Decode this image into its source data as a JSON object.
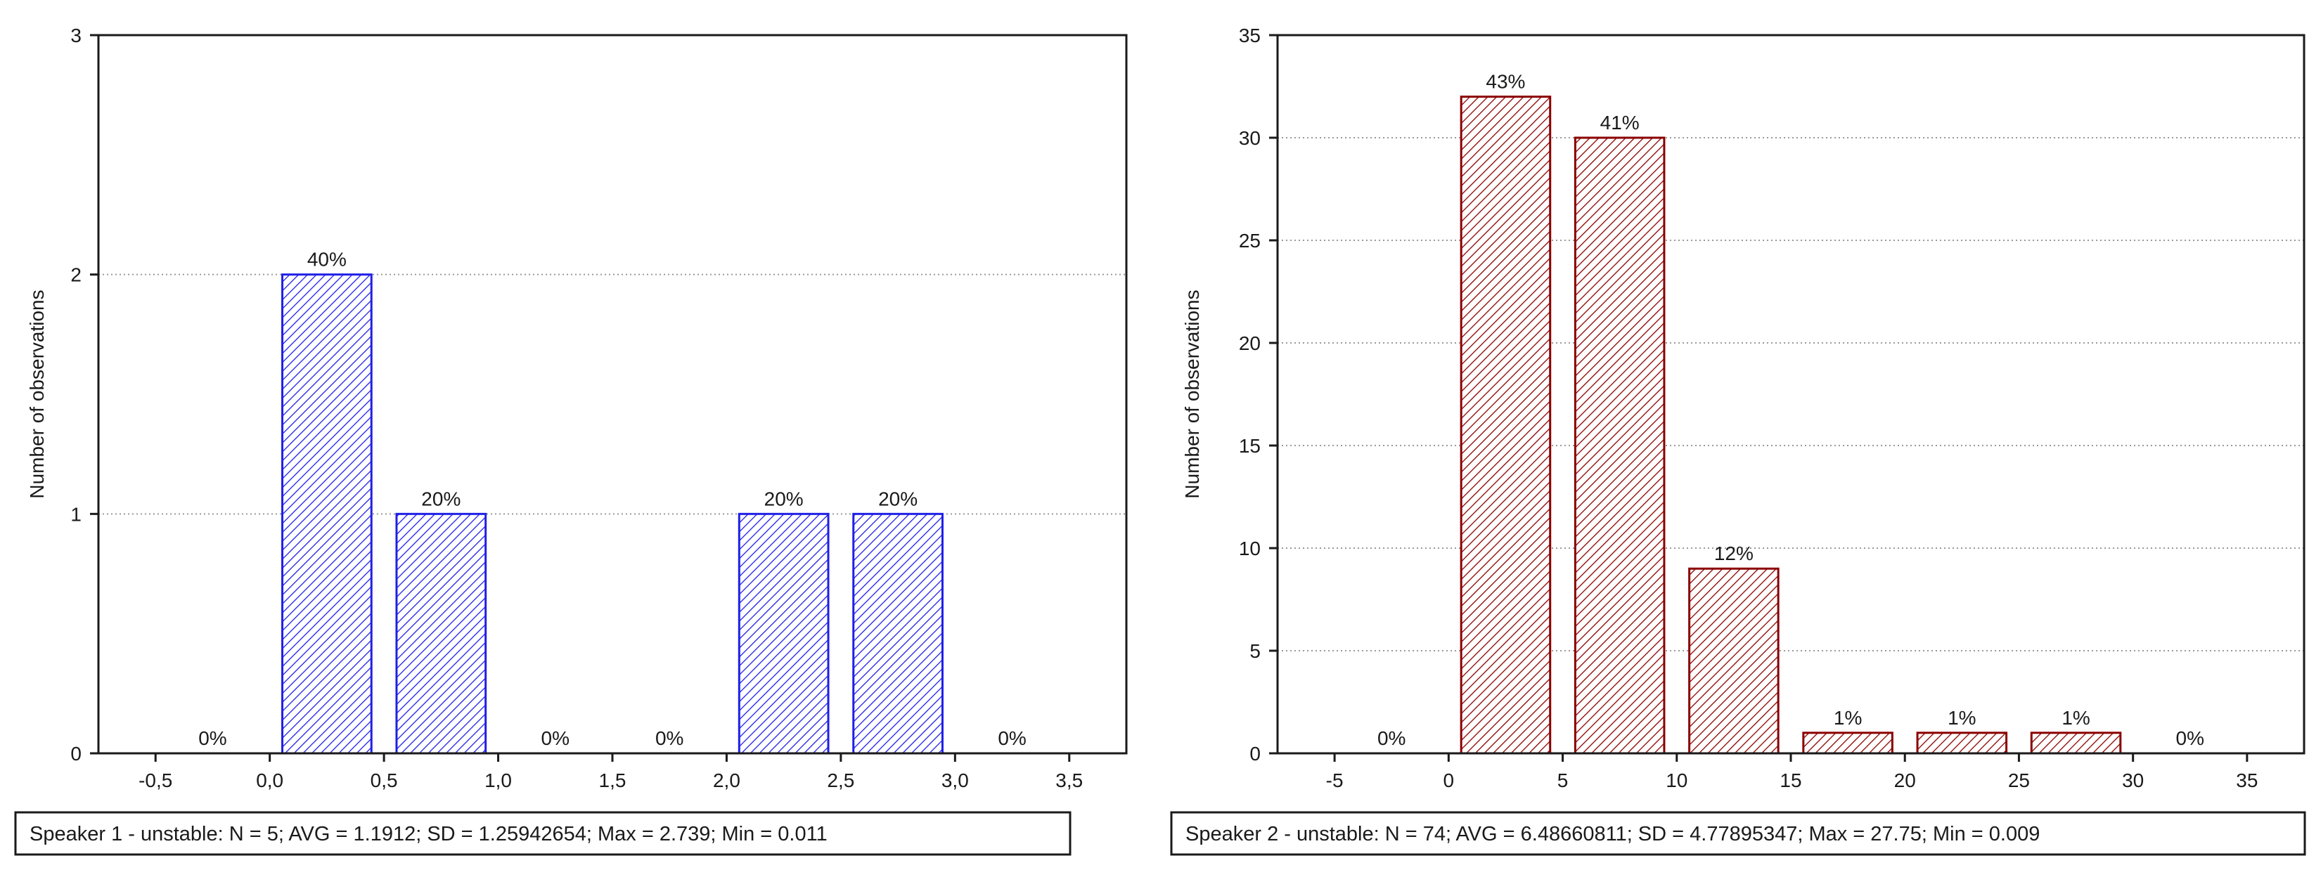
{
  "chart_data": [
    {
      "type": "bar",
      "xlabel": "",
      "ylabel": "Number of observations",
      "xlim": [
        -0.75,
        3.75
      ],
      "ylim": [
        0,
        3
      ],
      "xticks": [
        "-0,5",
        "0,0",
        "0,5",
        "1,0",
        "1,5",
        "2,0",
        "2,5",
        "3,0",
        "3,5"
      ],
      "xtick_values": [
        -0.5,
        0.0,
        0.5,
        1.0,
        1.5,
        2.0,
        2.5,
        3.0,
        3.5
      ],
      "yticks": [
        "0",
        "1",
        "2",
        "3"
      ],
      "ytick_values": [
        0,
        1,
        2,
        3
      ],
      "bins": [
        [
          -0.5,
          0.0
        ],
        [
          0.0,
          0.5
        ],
        [
          0.5,
          1.0
        ],
        [
          1.0,
          1.5
        ],
        [
          1.5,
          2.0
        ],
        [
          2.0,
          2.5
        ],
        [
          2.5,
          3.0
        ],
        [
          3.0,
          3.5
        ]
      ],
      "values": [
        0,
        2,
        1,
        0,
        0,
        1,
        1,
        0
      ],
      "data_labels": [
        "0%",
        "40%",
        "20%",
        "0%",
        "0%",
        "20%",
        "20%",
        "0%"
      ],
      "grid": "horizontal dotted",
      "colors": {
        "bar": "#1f1fe8",
        "hatch": "#1f1fe8"
      },
      "caption": "Speaker 1 - unstable:   N = 5; AVG = 1.1912; SD = 1.25942654; Max = 2.739; Min = 0.011"
    },
    {
      "type": "bar",
      "xlabel": "",
      "ylabel": "Number of observations",
      "xlim": [
        -7.5,
        37.5
      ],
      "ylim": [
        0,
        35
      ],
      "xticks": [
        "-5",
        "0",
        "5",
        "10",
        "15",
        "20",
        "25",
        "30",
        "35"
      ],
      "xtick_values": [
        -5,
        0,
        5,
        10,
        15,
        20,
        25,
        30,
        35
      ],
      "yticks": [
        "0",
        "5",
        "10",
        "15",
        "20",
        "25",
        "30",
        "35"
      ],
      "ytick_values": [
        0,
        5,
        10,
        15,
        20,
        25,
        30,
        35
      ],
      "bins": [
        [
          -5,
          0
        ],
        [
          0,
          5
        ],
        [
          5,
          10
        ],
        [
          10,
          15
        ],
        [
          15,
          20
        ],
        [
          20,
          25
        ],
        [
          25,
          30
        ],
        [
          30,
          35
        ]
      ],
      "values": [
        0,
        32,
        30,
        9,
        1,
        1,
        1,
        0
      ],
      "data_labels": [
        "0%",
        "43%",
        "41%",
        "12%",
        "1%",
        "1%",
        "1%",
        "0%"
      ],
      "grid": "horizontal dotted",
      "colors": {
        "bar": "#8b0000",
        "hatch": "#8b0000"
      },
      "caption": "Speaker 2 - unstable:   N = 74; AVG = 6.48660811; SD = 4.77895347; Max = 27.75; Min = 0.009"
    }
  ]
}
